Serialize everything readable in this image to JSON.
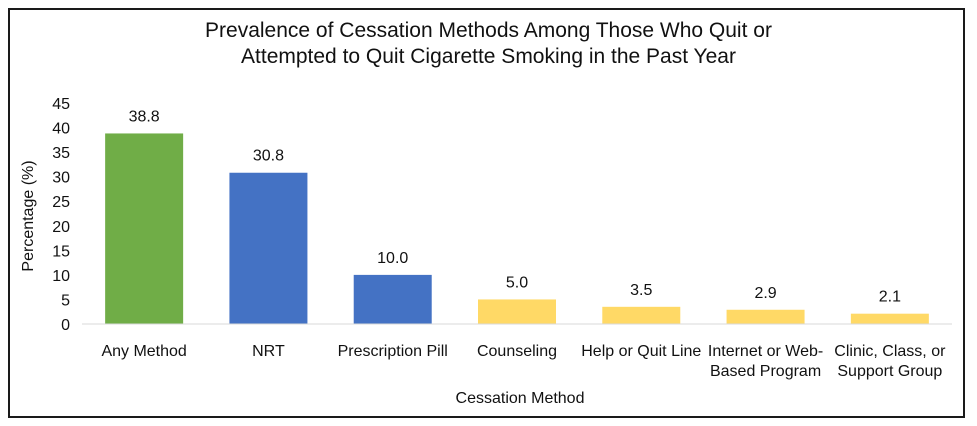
{
  "chart_data": {
    "type": "bar",
    "title_lines": [
      "Prevalence of Cessation Methods Among Those Who Quit or",
      "Attempted to Quit Cigarette Smoking in the Past Year"
    ],
    "xlabel": "Cessation Method",
    "ylabel": "Percentage (%)",
    "ylim": [
      0,
      45
    ],
    "yticks": [
      0,
      5,
      10,
      15,
      20,
      25,
      30,
      35,
      40,
      45
    ],
    "grid": false,
    "legend": "none",
    "categories": [
      [
        "Any Method"
      ],
      [
        "NRT"
      ],
      [
        "Prescription Pill"
      ],
      [
        "Counseling"
      ],
      [
        "Help or Quit Line"
      ],
      [
        "Internet or Web-",
        "Based Program"
      ],
      [
        "Clinic, Class, or",
        "Support Group"
      ]
    ],
    "values": [
      38.8,
      30.8,
      10.0,
      5.0,
      3.5,
      2.9,
      2.1
    ],
    "data_labels": [
      "38.8",
      "30.8",
      "10.0",
      "5.0",
      "3.5",
      "2.9",
      "2.1"
    ],
    "colors": [
      "#70ad47",
      "#4472c4",
      "#4472c4",
      "#ffd966",
      "#ffd966",
      "#ffd966",
      "#ffd966"
    ]
  }
}
